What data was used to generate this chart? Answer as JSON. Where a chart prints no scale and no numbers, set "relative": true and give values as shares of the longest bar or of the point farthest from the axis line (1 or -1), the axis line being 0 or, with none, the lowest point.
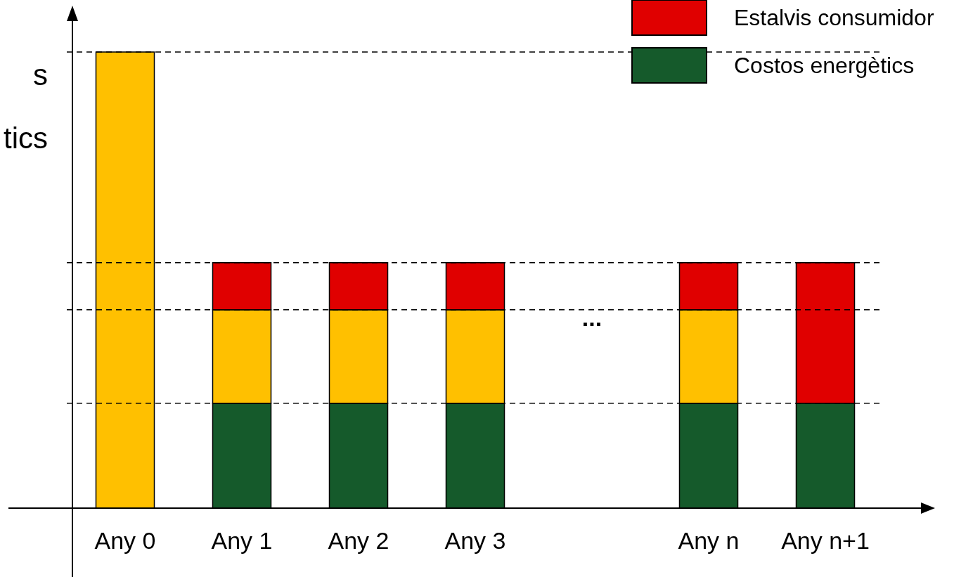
{
  "chart_data": {
    "type": "bar",
    "stacked": true,
    "relative": true,
    "ylabel": "s\ntics",
    "categories": [
      "Any 0",
      "Any 1",
      "Any 2",
      "Any 3",
      null,
      "Any n",
      "Any n+1"
    ],
    "series": [
      {
        "name": "Costos energètics",
        "color": "#155a2b",
        "values": [
          null,
          0.23,
          0.23,
          0.23,
          null,
          0.23,
          0.23
        ]
      },
      {
        "color": "#ffc000",
        "values": [
          1,
          0.205,
          0.205,
          0.205,
          null,
          0.205,
          null
        ]
      },
      {
        "name": "Estalvis consumidor",
        "color": "#e00000",
        "values": [
          null,
          0.103,
          0.103,
          0.103,
          null,
          0.103,
          0.308
        ]
      }
    ],
    "ref_lines": [
      {
        "axis": "y",
        "value": 1,
        "line_style": "dashed"
      },
      {
        "axis": "y",
        "value": 0.538,
        "line_style": "dashed"
      },
      {
        "axis": "y",
        "value": 0.435,
        "line_style": "dashed"
      },
      {
        "axis": "y",
        "value": 0.23,
        "line_style": "dashed"
      }
    ],
    "annotations": [
      "..."
    ],
    "legend": "top right",
    "grid": false
  }
}
